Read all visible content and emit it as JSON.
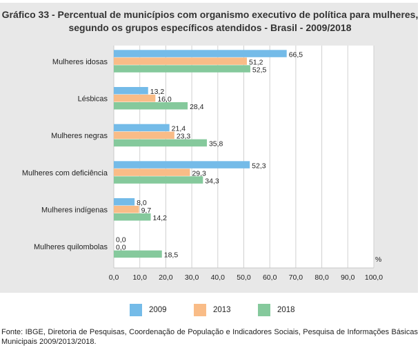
{
  "chart_data": {
    "type": "bar",
    "orientation": "horizontal",
    "title": "Gráfico 33 - Percentual de municípios com organismo executivo de política para mulheres, segundo os grupos específicos atendidos - Brasil - 2009/2018",
    "categories": [
      "Mulheres idosas",
      "Lésbicas",
      "Mulheres negras",
      "Mulheres com deficiência",
      "Mulheres indígenas",
      "Mulheres quilombolas"
    ],
    "series": [
      {
        "name": "2009",
        "color": "#74bbe8",
        "values": [
          66.5,
          13.2,
          21.4,
          52.3,
          8.0,
          0.0
        ],
        "labels": [
          "66,5",
          "13,2",
          "21,4",
          "52,3",
          "8,0",
          "0,0"
        ]
      },
      {
        "name": "2013",
        "color": "#f9bc87",
        "values": [
          51.2,
          16.0,
          23.3,
          29.3,
          9.7,
          0.0
        ],
        "labels": [
          "51,2",
          "16,0",
          "23,3",
          "29,3",
          "9,7",
          "0,0"
        ]
      },
      {
        "name": "2018",
        "color": "#85c99c",
        "values": [
          52.5,
          28.4,
          35.8,
          34.3,
          14.2,
          18.5
        ],
        "labels": [
          "52,5",
          "28,4",
          "35,8",
          "34,3",
          "14,2",
          "18,5"
        ]
      }
    ],
    "xlim": [
      0,
      100
    ],
    "xticks": [
      "0,0",
      "10,0",
      "20,0",
      "30,0",
      "40,0",
      "50,0",
      "60,0",
      "70,0",
      "80,0",
      "90,0",
      "100,0"
    ],
    "unit": "%",
    "grid": true,
    "legend": "bottom"
  },
  "source": "Fonte: IBGE, Diretoria de Pesquisas, Coordenação de População e Indicadores Sociais, Pesquisa de Informações Básicas Municipais 2009/2013/2018."
}
